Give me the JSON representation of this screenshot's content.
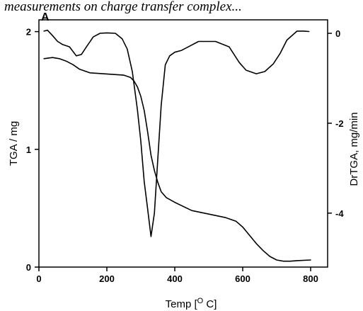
{
  "caption": "measurements on charge transfer complex...",
  "chart_data": {
    "type": "line",
    "panel_label": "A",
    "xlabel": "Temp [°C]",
    "xlabel_parts": {
      "pre": "Temp [",
      "sup": "O",
      "post": " C]"
    },
    "ylabel": "TGA / mg",
    "y2label": "DrTGA, mg/min",
    "xlim": [
      0,
      850
    ],
    "ylim": [
      0,
      2.1
    ],
    "y2lim": [
      -5.2,
      0.3
    ],
    "xticks": [
      0,
      200,
      400,
      600,
      800
    ],
    "yticks": [
      0,
      1,
      2
    ],
    "y2ticks": [
      -4,
      -2,
      0
    ],
    "grid": false,
    "series": [
      {
        "axis": "left",
        "x": [
          15,
          40,
          60,
          80,
          100,
          120,
          150,
          200,
          250,
          270,
          280,
          290,
          300,
          310,
          320,
          330,
          340,
          350,
          360,
          375,
          400,
          450,
          500,
          550,
          580,
          600,
          620,
          640,
          660,
          680,
          700,
          720,
          740,
          760,
          800
        ],
        "y": [
          1.77,
          1.78,
          1.77,
          1.75,
          1.72,
          1.68,
          1.65,
          1.64,
          1.63,
          1.61,
          1.58,
          1.53,
          1.45,
          1.33,
          1.15,
          0.95,
          0.82,
          0.72,
          0.64,
          0.59,
          0.55,
          0.48,
          0.45,
          0.42,
          0.39,
          0.34,
          0.27,
          0.2,
          0.14,
          0.09,
          0.06,
          0.05,
          0.05,
          0.055,
          0.06
        ]
      },
      {
        "axis": "right",
        "x": [
          15,
          25,
          40,
          55,
          70,
          90,
          110,
          125,
          140,
          160,
          180,
          200,
          225,
          245,
          260,
          275,
          290,
          300,
          310,
          320,
          330,
          340,
          350,
          360,
          372,
          385,
          400,
          420,
          440,
          470,
          520,
          560,
          590,
          610,
          640,
          665,
          690,
          710,
          730,
          760,
          780,
          795
        ],
        "y": [
          0.05,
          0.07,
          -0.05,
          -0.18,
          -0.25,
          -0.3,
          -0.5,
          -0.47,
          -0.3,
          -0.08,
          0.0,
          0.01,
          0.0,
          -0.12,
          -0.35,
          -0.85,
          -1.7,
          -2.4,
          -3.3,
          -3.9,
          -4.52,
          -4.0,
          -2.8,
          -1.6,
          -0.7,
          -0.5,
          -0.42,
          -0.38,
          -0.3,
          -0.18,
          -0.18,
          -0.3,
          -0.65,
          -0.82,
          -0.9,
          -0.85,
          -0.68,
          -0.45,
          -0.15,
          0.05,
          0.05,
          0.04
        ]
      }
    ]
  }
}
